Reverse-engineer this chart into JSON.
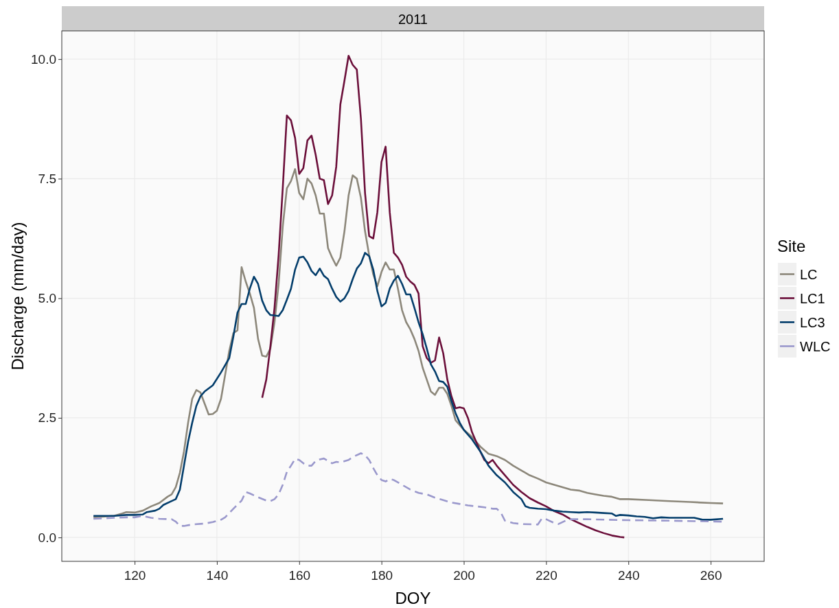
{
  "chart_data": {
    "type": "line",
    "title": "2011",
    "xlabel": "DOY",
    "ylabel": "Discharge (mm/day)",
    "legend_title": "Site",
    "legend": "right",
    "grid": true,
    "xlim": [
      102.3,
      273
    ],
    "xticks": [
      120,
      140,
      160,
      180,
      200,
      220,
      240,
      260
    ],
    "ylim": [
      -0.5,
      10.59
    ],
    "yticks": [
      {
        "value": 0,
        "label": "0.0"
      },
      {
        "value": 2.5,
        "label": "2.5"
      },
      {
        "value": 5,
        "label": "5.0"
      },
      {
        "value": 7.5,
        "label": "7.5"
      },
      {
        "value": 10,
        "label": "10.0"
      }
    ],
    "series": [
      {
        "name": "LC",
        "color": "#8c877a",
        "line_style": "solid",
        "x": [
          110,
          115,
          117,
          118,
          120,
          122,
          124,
          126,
          128,
          129,
          130,
          131,
          132,
          133,
          134,
          135,
          136,
          137,
          138,
          139,
          140,
          141,
          142,
          143,
          144,
          145,
          146,
          147,
          148,
          149,
          150,
          151,
          152,
          153,
          154,
          155,
          156,
          157,
          158,
          159,
          160,
          161,
          162,
          163,
          164,
          165,
          166,
          167,
          168,
          169,
          170,
          171,
          172,
          173,
          174,
          175,
          176,
          177,
          178,
          179,
          180,
          181,
          182,
          183,
          184,
          185,
          186,
          187,
          188,
          189,
          190,
          191,
          192,
          193,
          194,
          195,
          196,
          197,
          198,
          199,
          200,
          202,
          204,
          206,
          208,
          210,
          212,
          214,
          216,
          218,
          220,
          222,
          224,
          226,
          228,
          230,
          232,
          234,
          236,
          238,
          240,
          245,
          250,
          255,
          260,
          263
        ],
        "values": [
          0.42,
          0.45,
          0.5,
          0.53,
          0.52,
          0.56,
          0.65,
          0.72,
          0.85,
          0.9,
          1.05,
          1.35,
          1.8,
          2.4,
          2.9,
          3.08,
          3.03,
          2.8,
          2.57,
          2.58,
          2.65,
          2.9,
          3.4,
          3.9,
          4.27,
          4.33,
          5.65,
          5.35,
          5.1,
          4.8,
          4.15,
          3.8,
          3.78,
          3.95,
          4.5,
          5.3,
          6.5,
          7.3,
          7.45,
          7.7,
          7.2,
          7.07,
          7.5,
          7.4,
          7.15,
          6.77,
          6.77,
          6.05,
          5.85,
          5.68,
          5.85,
          6.4,
          7.15,
          7.57,
          7.5,
          7.1,
          6.4,
          5.9,
          5.5,
          5.25,
          5.55,
          5.75,
          5.6,
          5.6,
          5.2,
          4.75,
          4.5,
          4.35,
          4.15,
          3.9,
          3.55,
          3.3,
          3.05,
          2.98,
          3.13,
          3.13,
          3.0,
          2.75,
          2.45,
          2.35,
          2.25,
          2.1,
          1.9,
          1.75,
          1.7,
          1.62,
          1.5,
          1.4,
          1.3,
          1.23,
          1.15,
          1.1,
          1.05,
          1.0,
          0.98,
          0.93,
          0.9,
          0.87,
          0.85,
          0.8,
          0.8,
          0.78,
          0.76,
          0.74,
          0.72,
          0.71
        ]
      },
      {
        "name": "LC1",
        "color": "#6b0f3a",
        "line_style": "solid",
        "x": [
          151,
          152,
          153,
          154,
          155,
          156,
          157,
          158,
          159,
          160,
          161,
          162,
          163,
          164,
          165,
          166,
          167,
          168,
          169,
          170,
          171,
          172,
          173,
          174,
          175,
          176,
          177,
          178,
          179,
          180,
          181,
          182,
          183,
          184,
          185,
          186,
          187,
          188,
          189,
          190,
          191,
          192,
          193,
          194,
          195,
          196,
          197,
          198,
          199,
          200,
          201,
          202,
          203,
          204,
          205,
          206,
          207,
          208,
          210,
          212,
          214,
          216,
          218,
          220,
          222,
          224,
          226,
          228,
          230,
          232,
          234,
          236,
          238,
          239
        ],
        "values": [
          2.92,
          3.3,
          4.0,
          4.8,
          5.9,
          7.3,
          8.82,
          8.72,
          8.35,
          7.6,
          7.72,
          8.3,
          8.4,
          8.0,
          7.5,
          7.47,
          6.97,
          7.15,
          7.75,
          9.05,
          9.55,
          10.07,
          9.88,
          9.78,
          8.75,
          7.2,
          6.3,
          6.25,
          6.8,
          7.85,
          8.17,
          6.8,
          5.95,
          5.85,
          5.7,
          5.45,
          5.35,
          5.28,
          5.1,
          4.0,
          3.75,
          3.65,
          3.7,
          4.18,
          3.85,
          3.3,
          2.95,
          2.7,
          2.72,
          2.7,
          2.5,
          2.2,
          2.0,
          1.8,
          1.62,
          1.55,
          1.62,
          1.5,
          1.3,
          1.1,
          0.95,
          0.82,
          0.73,
          0.65,
          0.55,
          0.48,
          0.38,
          0.3,
          0.22,
          0.15,
          0.09,
          0.04,
          0.01,
          0.0
        ]
      },
      {
        "name": "LC3",
        "color": "#033d6b",
        "line_style": "solid",
        "x": [
          110,
          115,
          118,
          120,
          122,
          123,
          125,
          126,
          127,
          129,
          130,
          131,
          132,
          133,
          134,
          135,
          136,
          137,
          139,
          141,
          142,
          143,
          144,
          145,
          146,
          147,
          148,
          149,
          150,
          151,
          152,
          153,
          155,
          156,
          157,
          158,
          159,
          160,
          161,
          162,
          163,
          164,
          165,
          166,
          167,
          168,
          169,
          170,
          171,
          172,
          173,
          174,
          175,
          176,
          177,
          178,
          179,
          180,
          181,
          182,
          183,
          184,
          185,
          186,
          187,
          188,
          189,
          190,
          191,
          192,
          193,
          194,
          195,
          196,
          197,
          198,
          199,
          200,
          202,
          204,
          206,
          208,
          210,
          212,
          214,
          215,
          216,
          218,
          220,
          222,
          224,
          226,
          228,
          230,
          232,
          234,
          236,
          237,
          238,
          240,
          242,
          244,
          246,
          248,
          250,
          254,
          256,
          258,
          260,
          263
        ],
        "values": [
          0.45,
          0.45,
          0.47,
          0.47,
          0.48,
          0.53,
          0.56,
          0.6,
          0.68,
          0.76,
          0.8,
          1.0,
          1.5,
          2.0,
          2.4,
          2.75,
          2.95,
          3.05,
          3.18,
          3.45,
          3.6,
          3.75,
          4.2,
          4.7,
          4.88,
          4.88,
          5.2,
          5.45,
          5.3,
          4.95,
          4.75,
          4.65,
          4.63,
          4.75,
          4.97,
          5.2,
          5.6,
          5.85,
          5.87,
          5.75,
          5.57,
          5.48,
          5.62,
          5.47,
          5.4,
          5.2,
          5.03,
          4.93,
          5.0,
          5.15,
          5.4,
          5.62,
          5.73,
          5.95,
          5.88,
          5.6,
          5.15,
          4.83,
          4.9,
          5.2,
          5.37,
          5.47,
          5.3,
          5.08,
          5.08,
          4.8,
          4.5,
          4.25,
          3.95,
          3.62,
          3.47,
          3.27,
          3.25,
          3.15,
          2.85,
          2.6,
          2.4,
          2.25,
          2.05,
          1.8,
          1.5,
          1.3,
          1.15,
          0.95,
          0.8,
          0.65,
          0.62,
          0.6,
          0.59,
          0.56,
          0.54,
          0.53,
          0.52,
          0.53,
          0.52,
          0.51,
          0.5,
          0.45,
          0.47,
          0.46,
          0.44,
          0.43,
          0.4,
          0.42,
          0.41,
          0.41,
          0.41,
          0.37,
          0.37,
          0.39
        ]
      },
      {
        "name": "WLC",
        "color": "#9a98cc",
        "line_style": "dashed",
        "x": [
          110,
          115,
          118,
          120,
          122,
          124,
          126,
          129,
          130,
          131,
          132,
          134,
          137,
          139,
          141,
          142,
          144,
          146,
          147,
          148,
          150,
          152,
          153,
          154,
          155,
          156,
          157,
          158,
          159,
          160,
          161,
          162,
          163,
          164,
          165,
          166,
          167,
          168,
          169,
          170,
          172,
          173,
          175,
          176,
          177,
          178,
          179,
          180,
          181,
          182,
          183,
          185,
          187,
          189,
          191,
          193,
          195,
          197,
          199,
          201,
          203,
          205,
          207,
          208,
          209,
          210,
          212,
          214,
          218,
          219,
          220,
          222,
          223,
          225,
          226,
          230,
          240,
          250,
          263
        ],
        "values": [
          0.39,
          0.41,
          0.42,
          0.42,
          0.45,
          0.41,
          0.39,
          0.38,
          0.33,
          0.24,
          0.24,
          0.27,
          0.29,
          0.32,
          0.37,
          0.42,
          0.6,
          0.77,
          0.95,
          0.92,
          0.84,
          0.77,
          0.76,
          0.8,
          0.9,
          1.1,
          1.37,
          1.5,
          1.64,
          1.62,
          1.55,
          1.5,
          1.5,
          1.6,
          1.63,
          1.65,
          1.6,
          1.55,
          1.58,
          1.57,
          1.62,
          1.68,
          1.76,
          1.72,
          1.62,
          1.45,
          1.3,
          1.2,
          1.17,
          1.22,
          1.2,
          1.1,
          1.0,
          0.93,
          0.9,
          0.83,
          0.78,
          0.73,
          0.7,
          0.67,
          0.65,
          0.63,
          0.6,
          0.6,
          0.52,
          0.35,
          0.3,
          0.28,
          0.27,
          0.4,
          0.38,
          0.3,
          0.28,
          0.36,
          0.38,
          0.38,
          0.36,
          0.35,
          0.33
        ]
      }
    ]
  }
}
